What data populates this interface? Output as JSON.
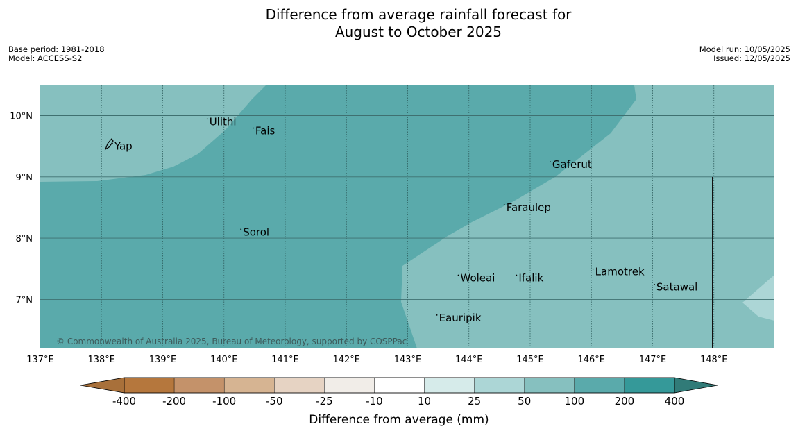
{
  "title": {
    "line1": "Difference from average rainfall forecast for",
    "line2": "August to October 2025"
  },
  "meta_left": {
    "base_period": "Base period: 1981-2018",
    "model": "Model: ACCESS-S2"
  },
  "meta_right": {
    "model_run": "Model run: 10/05/2025",
    "issued": "Issued: 12/05/2025"
  },
  "map": {
    "lon_ticks": [
      "137°E",
      "138°E",
      "139°E",
      "140°E",
      "141°E",
      "142°E",
      "143°E",
      "144°E",
      "145°E",
      "146°E",
      "147°E",
      "148°E"
    ],
    "lat_ticks": [
      "10°N",
      "9°N",
      "8°N",
      "7°N"
    ],
    "places": [
      {
        "name": "Yap",
        "lon": 138.2,
        "lat": 9.5
      },
      {
        "name": "Ulithi",
        "lon": 139.75,
        "lat": 9.9
      },
      {
        "name": "Fais",
        "lon": 140.5,
        "lat": 9.75
      },
      {
        "name": "Gaferut",
        "lon": 145.35,
        "lat": 9.2
      },
      {
        "name": "Faraulep",
        "lon": 144.6,
        "lat": 8.5
      },
      {
        "name": "Sorol",
        "lon": 140.3,
        "lat": 8.1
      },
      {
        "name": "Woleai",
        "lon": 143.85,
        "lat": 7.35
      },
      {
        "name": "Ifalik",
        "lon": 144.8,
        "lat": 7.35
      },
      {
        "name": "Lamotrek",
        "lon": 146.05,
        "lat": 7.45
      },
      {
        "name": "Satawal",
        "lon": 147.05,
        "lat": 7.2
      },
      {
        "name": "Eauripik",
        "lon": 143.5,
        "lat": 6.7
      }
    ],
    "copyright": "© Commonwealth of Australia 2025, Bureau of Meteorology, supported by COSPPac"
  },
  "colorbar": {
    "label": "Difference from average (mm)",
    "ticks": [
      "-400",
      "-200",
      "-100",
      "-50",
      "-25",
      "-10",
      "10",
      "25",
      "50",
      "100",
      "200",
      "400"
    ],
    "colors": [
      "#a8703a",
      "#b5773d",
      "#c4926a",
      "#d6b492",
      "#e6d3c3",
      "#f1ede8",
      "#ffffff",
      "#d6ebea",
      "#acd6d6",
      "#86c0bf",
      "#5aaaab",
      "#359999",
      "#317b78"
    ]
  }
}
